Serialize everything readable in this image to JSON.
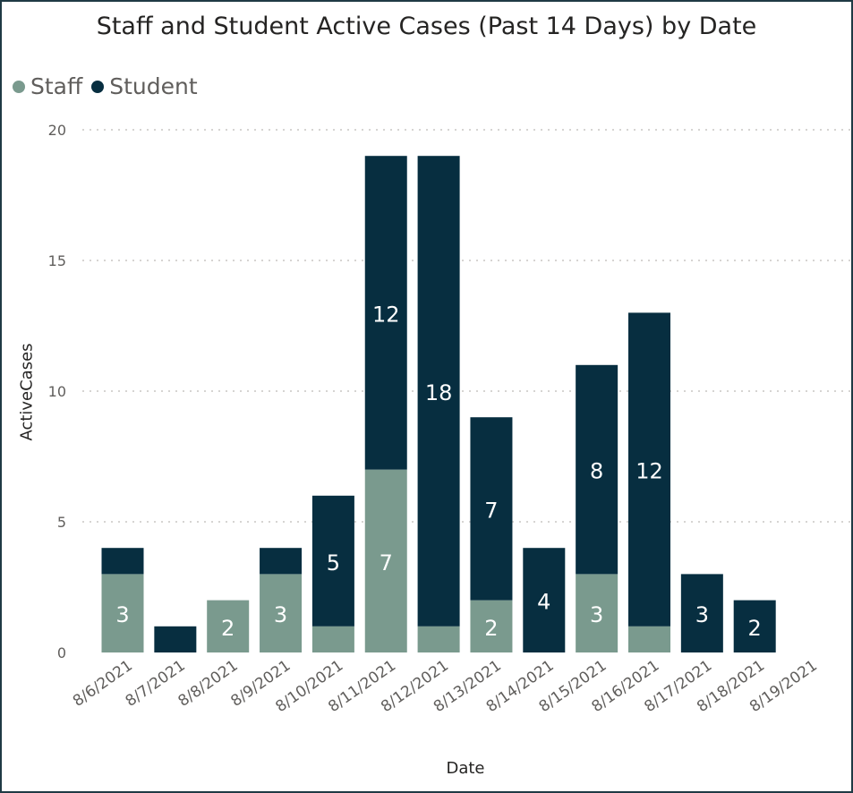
{
  "chart_data": {
    "type": "bar",
    "stacked": true,
    "title": "Staff and Student Active Cases (Past 14 Days) by Date",
    "xlabel": "Date",
    "ylabel": "ActiveCases",
    "ylim": [
      0,
      20
    ],
    "yticks": [
      0,
      5,
      10,
      15,
      20
    ],
    "grid": true,
    "legend_position": "top-left",
    "categories": [
      "8/6/2021",
      "8/7/2021",
      "8/8/2021",
      "8/9/2021",
      "8/10/2021",
      "8/11/2021",
      "8/12/2021",
      "8/13/2021",
      "8/14/2021",
      "8/15/2021",
      "8/16/2021",
      "8/17/2021",
      "8/18/2021",
      "8/19/2021"
    ],
    "series": [
      {
        "name": "Staff",
        "color": "#7a9a8e",
        "values": [
          3,
          0,
          2,
          3,
          1,
          7,
          1,
          2,
          0,
          3,
          1,
          0,
          0,
          0
        ]
      },
      {
        "name": "Student",
        "color": "#072e40",
        "values": [
          1,
          1,
          0,
          1,
          5,
          12,
          18,
          7,
          4,
          8,
          12,
          3,
          2,
          0
        ]
      }
    ],
    "data_labels": {
      "Staff": [
        "3",
        "",
        "2",
        "3",
        "",
        "7",
        "",
        "2",
        "",
        "3",
        "",
        "",
        "",
        ""
      ],
      "Student": [
        "",
        "",
        "",
        "",
        "5",
        "12",
        "18",
        "7",
        "4",
        "8",
        "12",
        "3",
        "2",
        ""
      ]
    }
  }
}
